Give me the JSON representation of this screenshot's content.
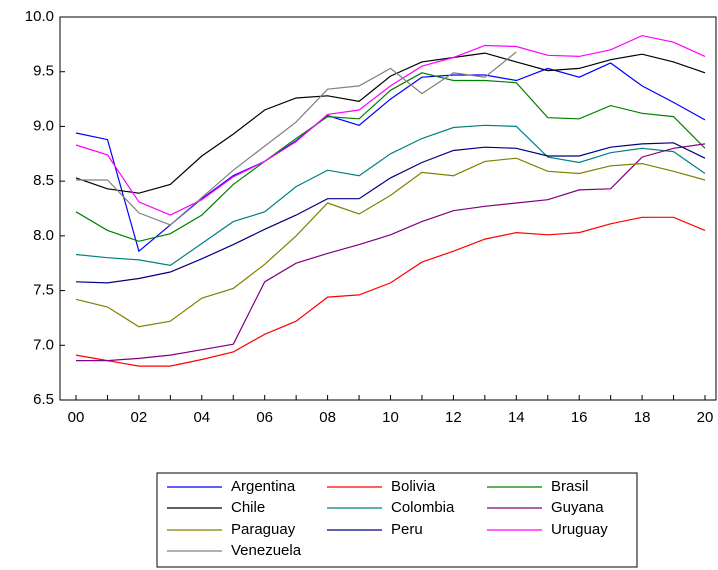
{
  "chart_data": {
    "type": "line",
    "categories": [
      "00",
      null,
      "02",
      null,
      "04",
      null,
      "06",
      null,
      "08",
      null,
      "10",
      null,
      "12",
      null,
      "14",
      null,
      "16",
      null,
      "18",
      null,
      "20"
    ],
    "ylim": [
      6.5,
      10.0
    ],
    "yticks": [
      6.5,
      {
        "value": 7.0,
        "label": "7.0"
      },
      7.5,
      {
        "value": 8.0,
        "label": "8.0"
      },
      8.5,
      {
        "value": 9.0,
        "label": "9.0"
      },
      9.5,
      {
        "value": 10.0,
        "label": "10.0"
      }
    ],
    "grid": false,
    "legend": "bottom",
    "series": [
      {
        "name": "Argentina",
        "color": "#0000ff",
        "values": [
          8.94,
          8.88,
          7.86,
          8.1,
          8.34,
          8.55,
          8.68,
          8.87,
          9.1,
          9.01,
          9.25,
          9.45,
          9.47,
          9.47,
          9.42,
          9.53,
          9.45,
          9.58,
          9.37,
          9.22,
          9.06
        ]
      },
      {
        "name": "Bolivia",
        "color": "#ff0000",
        "values": [
          6.91,
          6.86,
          6.81,
          6.81,
          6.87,
          6.94,
          7.1,
          7.22,
          7.44,
          7.46,
          7.57,
          7.76,
          7.86,
          7.97,
          8.03,
          8.01,
          8.03,
          8.11,
          8.17,
          8.17,
          8.05
        ]
      },
      {
        "name": "Brasil",
        "color": "#008000",
        "values": [
          8.22,
          8.05,
          7.95,
          8.02,
          8.19,
          8.47,
          8.68,
          8.89,
          9.09,
          9.07,
          9.33,
          9.49,
          9.42,
          9.42,
          9.4,
          9.08,
          9.07,
          9.19,
          9.12,
          9.09,
          8.8
        ]
      },
      {
        "name": "Chile",
        "color": "#000000",
        "values": [
          8.53,
          8.43,
          8.39,
          8.47,
          8.73,
          8.93,
          9.15,
          9.26,
          9.28,
          9.23,
          9.46,
          9.59,
          9.63,
          9.67,
          9.59,
          9.51,
          9.53,
          9.61,
          9.66,
          9.59,
          9.49
        ]
      },
      {
        "name": "Colombia",
        "color": "#008080",
        "values": [
          7.83,
          7.8,
          7.78,
          7.73,
          7.93,
          8.13,
          8.22,
          8.45,
          8.6,
          8.55,
          8.75,
          8.89,
          8.99,
          9.01,
          9.0,
          8.72,
          8.67,
          8.76,
          8.8,
          8.77,
          8.57
        ]
      },
      {
        "name": "Guyana",
        "color": "#800080",
        "values": [
          6.86,
          6.86,
          6.88,
          6.91,
          6.96,
          7.01,
          7.58,
          7.75,
          7.84,
          7.92,
          8.01,
          8.13,
          8.23,
          8.27,
          8.3,
          8.33,
          8.42,
          8.43,
          8.72,
          8.8,
          8.84
        ]
      },
      {
        "name": "Paraguay",
        "color": "#808000",
        "values": [
          7.42,
          7.35,
          7.17,
          7.22,
          7.43,
          7.52,
          7.74,
          8.0,
          8.3,
          8.2,
          8.37,
          8.58,
          8.55,
          8.68,
          8.71,
          8.59,
          8.57,
          8.64,
          8.66,
          8.59,
          8.51
        ]
      },
      {
        "name": "Peru",
        "color": "#000080",
        "values": [
          7.58,
          7.57,
          7.61,
          7.67,
          7.79,
          7.92,
          8.06,
          8.19,
          8.34,
          8.34,
          8.53,
          8.67,
          8.78,
          8.81,
          8.8,
          8.73,
          8.73,
          8.81,
          8.84,
          8.85,
          8.71
        ]
      },
      {
        "name": "Uruguay",
        "color": "#ff00ff",
        "values": [
          8.83,
          8.74,
          8.31,
          8.19,
          8.33,
          8.54,
          8.68,
          8.86,
          9.11,
          9.15,
          9.37,
          9.55,
          9.63,
          9.74,
          9.73,
          9.65,
          9.64,
          9.7,
          9.83,
          9.77,
          9.64
        ]
      },
      {
        "name": "Venezuela",
        "color": "#808080",
        "values": [
          8.51,
          8.51,
          8.21,
          8.1,
          8.35,
          8.6,
          8.82,
          9.04,
          9.34,
          9.37,
          9.53,
          9.3,
          9.49,
          9.45,
          9.68,
          null,
          null,
          null,
          null,
          null,
          null
        ]
      }
    ]
  }
}
